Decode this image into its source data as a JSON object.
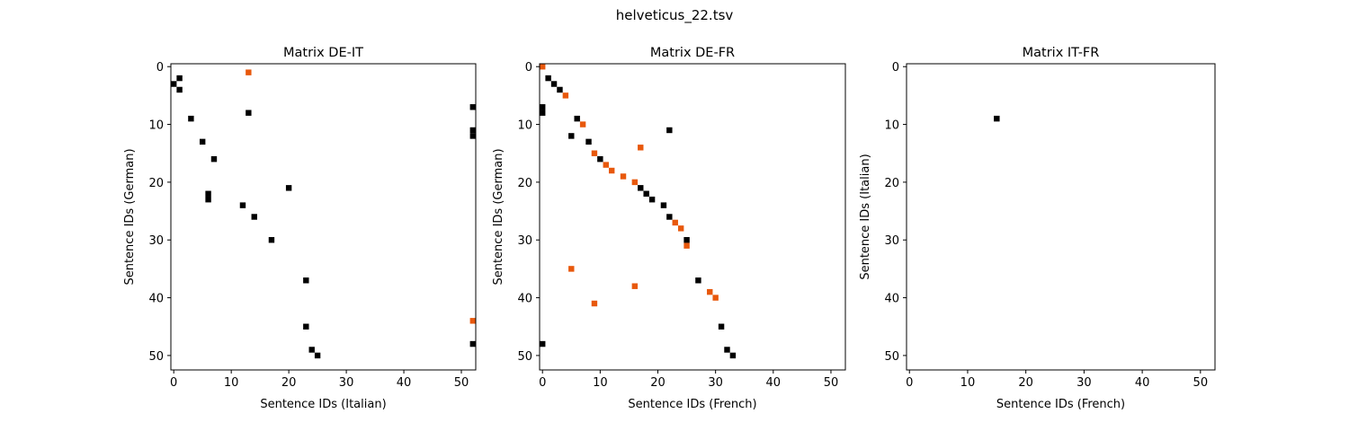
{
  "figure_title": "helveticus_22.tsv",
  "colors": {
    "black": "#000000",
    "orange": "#e8580c",
    "axis": "#000000"
  },
  "chart_data": [
    {
      "type": "heatmap",
      "title": "Matrix DE-IT",
      "xlabel": "Sentence IDs (Italian)",
      "ylabel": "Sentence IDs (German)",
      "xlim": [
        -0.5,
        52.5
      ],
      "ylim": [
        52.5,
        -0.5
      ],
      "xticks": [
        "0",
        "10",
        "20",
        "30",
        "40",
        "50"
      ],
      "yticks": [
        "0",
        "10",
        "20",
        "30",
        "40",
        "50"
      ],
      "xtick_values": [
        0,
        10,
        20,
        30,
        40,
        50
      ],
      "ytick_values": [
        0,
        10,
        20,
        30,
        40,
        50
      ],
      "points": [
        {
          "x": 13,
          "y": 1,
          "c": "orange"
        },
        {
          "x": 1,
          "y": 2,
          "c": "black"
        },
        {
          "x": 0,
          "y": 3,
          "c": "black"
        },
        {
          "x": 1,
          "y": 4,
          "c": "black"
        },
        {
          "x": 52,
          "y": 7,
          "c": "black"
        },
        {
          "x": 13,
          "y": 8,
          "c": "black"
        },
        {
          "x": 3,
          "y": 9,
          "c": "black"
        },
        {
          "x": 52,
          "y": 11,
          "c": "black"
        },
        {
          "x": 52,
          "y": 12,
          "c": "black"
        },
        {
          "x": 5,
          "y": 13,
          "c": "black"
        },
        {
          "x": 7,
          "y": 16,
          "c": "black"
        },
        {
          "x": 20,
          "y": 21,
          "c": "black"
        },
        {
          "x": 6,
          "y": 22,
          "c": "black"
        },
        {
          "x": 6,
          "y": 23,
          "c": "black"
        },
        {
          "x": 12,
          "y": 24,
          "c": "black"
        },
        {
          "x": 14,
          "y": 26,
          "c": "black"
        },
        {
          "x": 17,
          "y": 30,
          "c": "black"
        },
        {
          "x": 23,
          "y": 37,
          "c": "black"
        },
        {
          "x": 52,
          "y": 44,
          "c": "orange"
        },
        {
          "x": 23,
          "y": 45,
          "c": "black"
        },
        {
          "x": 52,
          "y": 48,
          "c": "black"
        },
        {
          "x": 24,
          "y": 49,
          "c": "black"
        },
        {
          "x": 25,
          "y": 50,
          "c": "black"
        }
      ]
    },
    {
      "type": "heatmap",
      "title": "Matrix DE-FR",
      "xlabel": "Sentence IDs (French)",
      "ylabel": "Sentence IDs (German)",
      "xlim": [
        -0.5,
        52.5
      ],
      "ylim": [
        52.5,
        -0.5
      ],
      "xticks": [
        "0",
        "10",
        "20",
        "30",
        "40",
        "50"
      ],
      "yticks": [
        "0",
        "10",
        "20",
        "30",
        "40",
        "50"
      ],
      "xtick_values": [
        0,
        10,
        20,
        30,
        40,
        50
      ],
      "ytick_values": [
        0,
        10,
        20,
        30,
        40,
        50
      ],
      "points": [
        {
          "x": 0,
          "y": 0,
          "c": "orange"
        },
        {
          "x": 1,
          "y": 2,
          "c": "black"
        },
        {
          "x": 2,
          "y": 3,
          "c": "black"
        },
        {
          "x": 3,
          "y": 4,
          "c": "black"
        },
        {
          "x": 4,
          "y": 5,
          "c": "orange"
        },
        {
          "x": 0,
          "y": 7,
          "c": "black"
        },
        {
          "x": 0,
          "y": 8,
          "c": "black"
        },
        {
          "x": 6,
          "y": 9,
          "c": "black"
        },
        {
          "x": 7,
          "y": 10,
          "c": "orange"
        },
        {
          "x": 22,
          "y": 11,
          "c": "black"
        },
        {
          "x": 5,
          "y": 12,
          "c": "black"
        },
        {
          "x": 8,
          "y": 13,
          "c": "black"
        },
        {
          "x": 17,
          "y": 14,
          "c": "orange"
        },
        {
          "x": 9,
          "y": 15,
          "c": "orange"
        },
        {
          "x": 10,
          "y": 16,
          "c": "black"
        },
        {
          "x": 11,
          "y": 17,
          "c": "orange"
        },
        {
          "x": 12,
          "y": 18,
          "c": "orange"
        },
        {
          "x": 14,
          "y": 19,
          "c": "orange"
        },
        {
          "x": 16,
          "y": 20,
          "c": "orange"
        },
        {
          "x": 17,
          "y": 21,
          "c": "black"
        },
        {
          "x": 18,
          "y": 22,
          "c": "black"
        },
        {
          "x": 19,
          "y": 23,
          "c": "black"
        },
        {
          "x": 21,
          "y": 24,
          "c": "black"
        },
        {
          "x": 22,
          "y": 26,
          "c": "black"
        },
        {
          "x": 23,
          "y": 27,
          "c": "orange"
        },
        {
          "x": 24,
          "y": 28,
          "c": "orange"
        },
        {
          "x": 25,
          "y": 30,
          "c": "black"
        },
        {
          "x": 25,
          "y": 31,
          "c": "orange"
        },
        {
          "x": 5,
          "y": 35,
          "c": "orange"
        },
        {
          "x": 27,
          "y": 37,
          "c": "black"
        },
        {
          "x": 16,
          "y": 38,
          "c": "orange"
        },
        {
          "x": 29,
          "y": 39,
          "c": "orange"
        },
        {
          "x": 30,
          "y": 40,
          "c": "orange"
        },
        {
          "x": 9,
          "y": 41,
          "c": "orange"
        },
        {
          "x": 31,
          "y": 45,
          "c": "black"
        },
        {
          "x": 0,
          "y": 48,
          "c": "black"
        },
        {
          "x": 32,
          "y": 49,
          "c": "black"
        },
        {
          "x": 33,
          "y": 50,
          "c": "black"
        }
      ]
    },
    {
      "type": "heatmap",
      "title": "Matrix IT-FR",
      "xlabel": "Sentence IDs (French)",
      "ylabel": "Sentence IDs (Italian)",
      "xlim": [
        -0.5,
        52.5
      ],
      "ylim": [
        52.5,
        -0.5
      ],
      "xticks": [
        "0",
        "10",
        "20",
        "30",
        "40",
        "50"
      ],
      "yticks": [
        "0",
        "10",
        "20",
        "30",
        "40",
        "50"
      ],
      "xtick_values": [
        0,
        10,
        20,
        30,
        40,
        50
      ],
      "ytick_values": [
        0,
        10,
        20,
        30,
        40,
        50
      ],
      "points": [
        {
          "x": 15,
          "y": 9,
          "c": "black"
        }
      ]
    }
  ]
}
